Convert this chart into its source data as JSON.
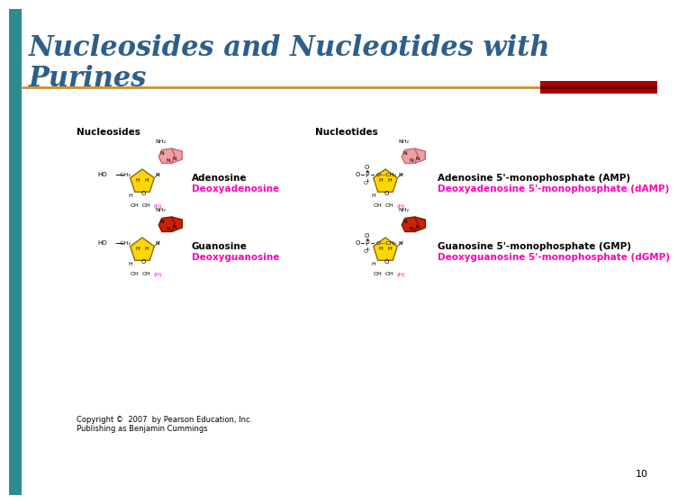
{
  "title_line1": "Nucleosides and Nucleotides with",
  "title_line2": "Purines",
  "title_color": "#2E5F8A",
  "bg_color": "#FFFFFF",
  "left_bar_color": "#2E8B8B",
  "line_color": "#C8922A",
  "red_bar_color": "#8B1A1A",
  "slide_number": "10",
  "copyright_line1": "Copyright ©  2007  by Pearson Education, Inc.",
  "copyright_line2": "Publishing as Benjamin Cummings",
  "nucleosides_label": "Nucleosides",
  "nucleotides_label": "Nucleotides",
  "adenosine_label": "Adenosine",
  "deoxyadenine_label": "Deoxyadenosine",
  "guanosine_label": "Guanosine",
  "deoxyguanosine_label": "Deoxyguanosine",
  "amp_label": "Adenosine 5'-monophosphate (AMP)",
  "damp_label": "Deoxyadenosine 5'-monophosphate (dAMP)",
  "gmp_label": "Guanosine 5'-monophosphate (GMP)",
  "dgmp_label": "Deoxyguanosine 5'-monophosphate (dGMP)",
  "magenta_color": "#FF00BB",
  "black_label_color": "#000000",
  "sugar_fill": "#FFD700",
  "sugar_edge": "#8B6914",
  "adenine_fill": "#F0A0A0",
  "adenine_edge": "#CC6677",
  "guanine_fill": "#CC2200",
  "guanine_edge": "#881100"
}
